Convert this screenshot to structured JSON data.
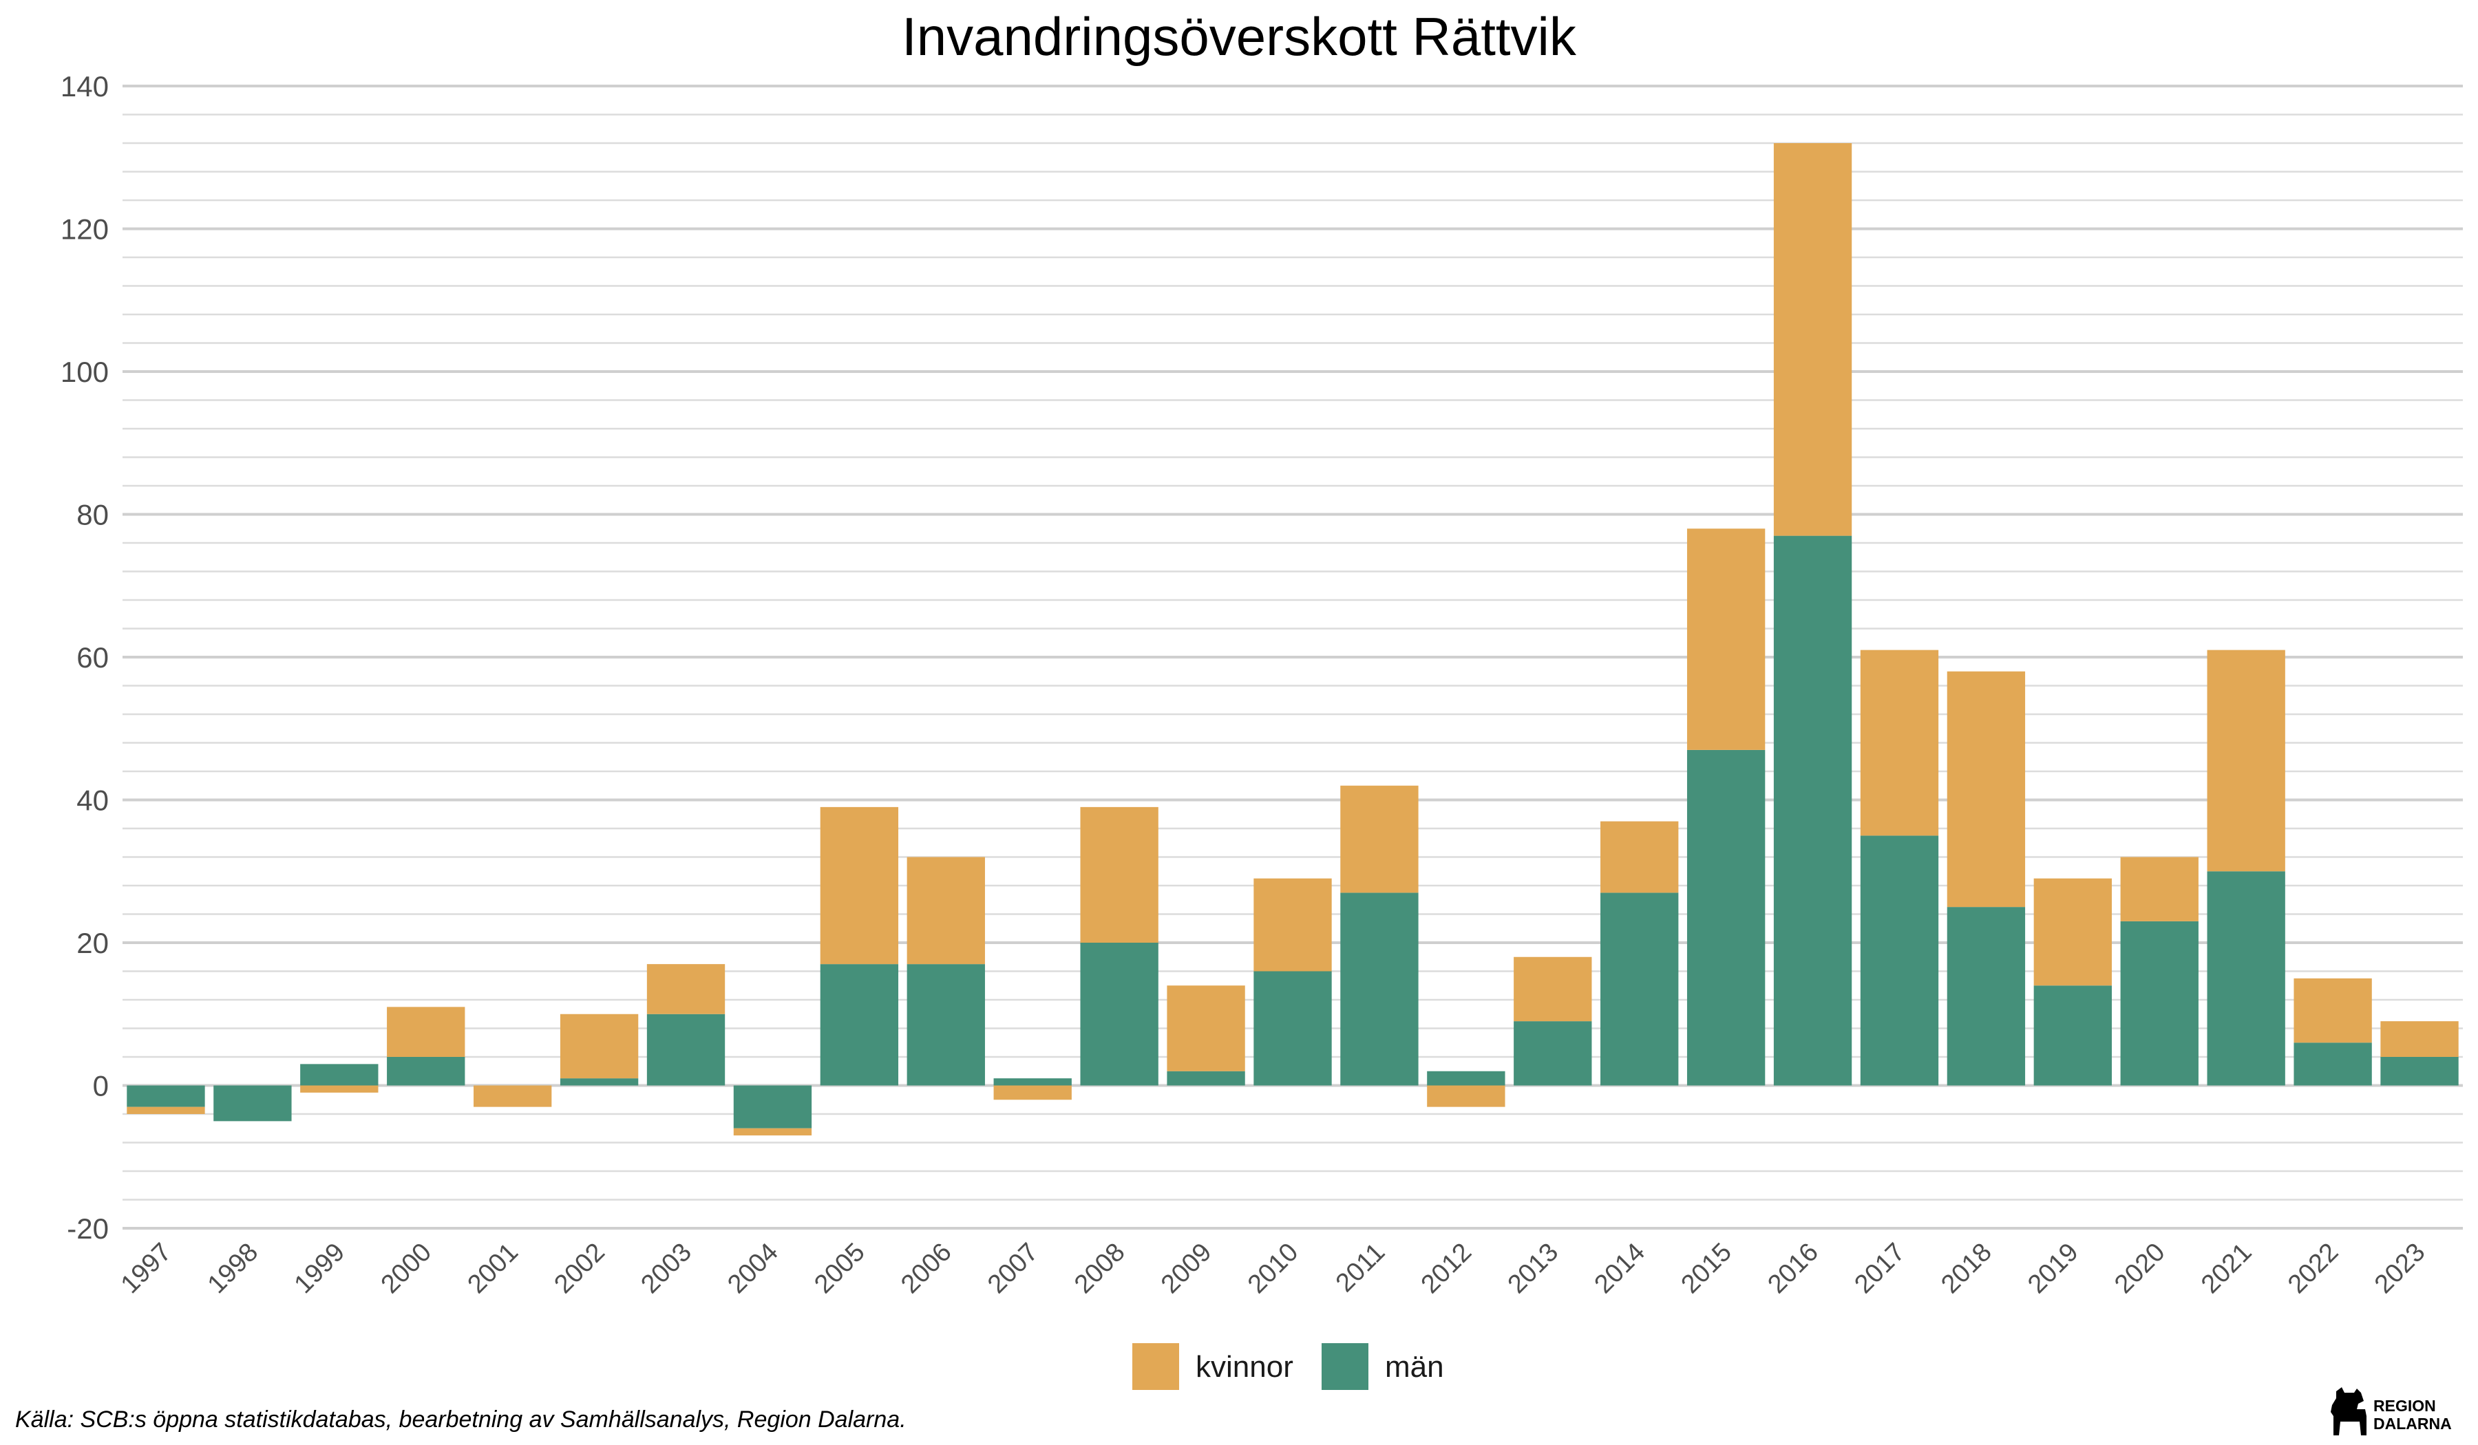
{
  "chart_data": {
    "type": "bar",
    "stacked": true,
    "title": "Invandringsöverskott Rättvik",
    "xlabel": "",
    "ylabel": "",
    "ylim": [
      -20,
      140
    ],
    "yticks": [
      -20,
      0,
      20,
      40,
      60,
      80,
      100,
      120,
      140
    ],
    "grid": true,
    "legend_position": "bottom",
    "categories": [
      "1997",
      "1998",
      "1999",
      "2000",
      "2001",
      "2002",
      "2003",
      "2004",
      "2005",
      "2006",
      "2007",
      "2008",
      "2009",
      "2010",
      "2011",
      "2012",
      "2013",
      "2014",
      "2015",
      "2016",
      "2017",
      "2018",
      "2019",
      "2020",
      "2021",
      "2022",
      "2023"
    ],
    "series": [
      {
        "name": "män",
        "color": "#45907a",
        "values": [
          -3,
          -5,
          3,
          4,
          0,
          1,
          10,
          -6,
          17,
          17,
          1,
          20,
          2,
          16,
          27,
          2,
          9,
          27,
          47,
          77,
          35,
          25,
          14,
          23,
          30,
          6,
          4
        ]
      },
      {
        "name": "kvinnor",
        "color": "#e2a855",
        "values": [
          -1,
          0,
          -1,
          7,
          -3,
          9,
          7,
          -1,
          22,
          15,
          -2,
          19,
          12,
          13,
          15,
          -3,
          9,
          10,
          31,
          55,
          26,
          33,
          15,
          9,
          31,
          9,
          5
        ]
      }
    ],
    "legend_order": [
      "kvinnor",
      "män"
    ]
  },
  "source": "Källa: SCB:s öppna statistikdatabas, bearbetning av Samhällsanalys, Region Dalarna.",
  "logo": {
    "line1": "REGION",
    "line2": "DALARNA"
  }
}
